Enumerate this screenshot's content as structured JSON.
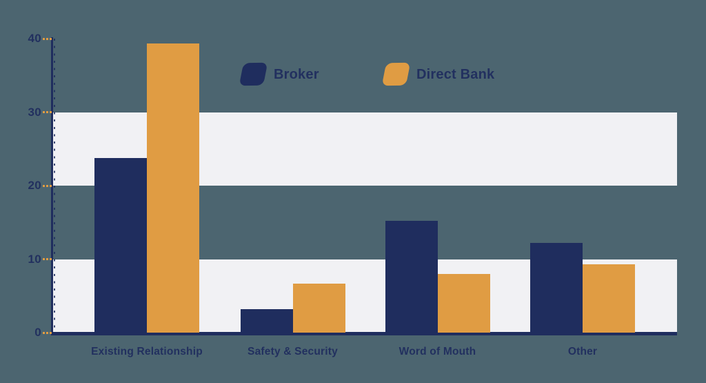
{
  "chart": {
    "background_color": "#4c6570",
    "band_color": "#f1f1f4",
    "axis_color": "#1f2d5e",
    "major_tick_color": "#e09c43",
    "label_color": "#22305f"
  },
  "legend": {
    "items": [
      {
        "label": "Broker",
        "color": "#1f2d5e"
      },
      {
        "label": "Direct Bank",
        "color": "#e09c43"
      }
    ]
  },
  "chart_data": {
    "type": "bar",
    "title": "",
    "xlabel": "",
    "ylabel": "",
    "categories": [
      "Existing Relationship",
      "Safety & Security",
      "Word of Mouth",
      "Other"
    ],
    "series": [
      {
        "name": "Broker",
        "color": "#1f2d5e",
        "values": [
          23.8,
          3.2,
          15.2,
          12.2
        ]
      },
      {
        "name": "Direct Bank",
        "color": "#e09c43",
        "values": [
          39.3,
          6.7,
          8.0,
          9.3
        ]
      }
    ],
    "ylim": [
      0,
      40
    ],
    "yticks": [
      0,
      10,
      20,
      30,
      40
    ],
    "striped_bands": [
      [
        0,
        10
      ],
      [
        20,
        30
      ]
    ],
    "grid": "alternating horizontal light bands",
    "legend_position": "top-center"
  }
}
